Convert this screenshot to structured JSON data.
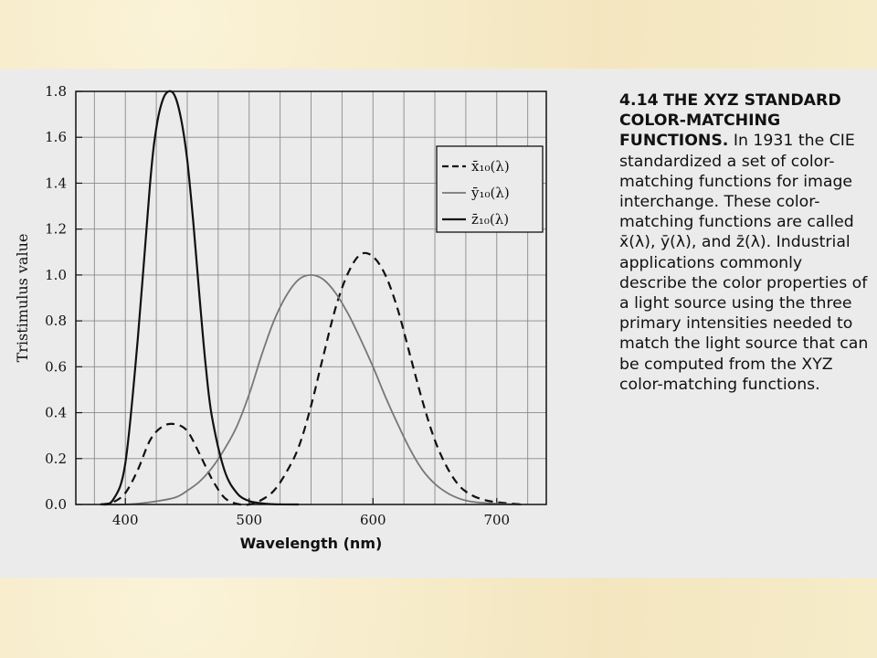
{
  "slide": {
    "caption_number": "4.14",
    "caption_title": "THE XYZ STANDARD COLOR-MATCHING FUNCTIONS.",
    "caption_text_1": "In 1931 the CIE standardized a set of color-matching functions for image interchange. These color-matching functions are called",
    "caption_fn_x": "x̄(λ),",
    "caption_fn_y": "ȳ(λ),",
    "caption_and": "and",
    "caption_fn_z": "z̄(λ).",
    "caption_text_2": "Industrial applications commonly describe the color properties of a light source using the three primary intensities needed to match the light source that can be computed from the XYZ color-matching functions."
  },
  "chart_data": {
    "type": "line",
    "title": "",
    "xlabel": "Wavelength (nm)",
    "ylabel": "Tristimulus value",
    "xlim": [
      360,
      740
    ],
    "ylim": [
      0,
      1.8
    ],
    "x_ticks": [
      400,
      500,
      600,
      700
    ],
    "y_ticks": [
      0.0,
      0.2,
      0.4,
      0.6,
      0.8,
      1.0,
      1.2,
      1.4,
      1.6,
      1.8
    ],
    "y_tick_labels": [
      "0.0",
      "0.2",
      "0.4",
      "0.6",
      "0.8",
      "1.0",
      "1.2",
      "1.4",
      "1.6",
      "1.8"
    ],
    "grid": true,
    "legend_position": "top-right",
    "legend": [
      "x̄₁₀(λ)",
      "ȳ₁₀(λ)",
      "z̄₁₀(λ)"
    ],
    "series": [
      {
        "name": "x̄₁₀(λ)",
        "style": "dashed",
        "x": [
          380,
          390,
          400,
          410,
          420,
          430,
          440,
          450,
          460,
          470,
          480,
          490,
          500,
          510,
          520,
          530,
          540,
          550,
          560,
          570,
          580,
          590,
          600,
          610,
          620,
          630,
          640,
          650,
          660,
          670,
          680,
          690,
          700,
          720
        ],
        "y": [
          0.0,
          0.01,
          0.05,
          0.15,
          0.28,
          0.34,
          0.35,
          0.32,
          0.22,
          0.11,
          0.03,
          0.003,
          0.0,
          0.02,
          0.06,
          0.14,
          0.25,
          0.43,
          0.65,
          0.86,
          1.01,
          1.09,
          1.08,
          1.0,
          0.85,
          0.65,
          0.45,
          0.28,
          0.16,
          0.08,
          0.04,
          0.02,
          0.01,
          0.0
        ]
      },
      {
        "name": "ȳ₁₀(λ)",
        "style": "solid-gray",
        "x": [
          380,
          400,
          420,
          440,
          450,
          460,
          470,
          480,
          490,
          500,
          510,
          520,
          530,
          540,
          550,
          560,
          570,
          580,
          590,
          600,
          610,
          620,
          630,
          640,
          650,
          660,
          670,
          680,
          700,
          720
        ],
        "y": [
          0.0,
          0.0,
          0.01,
          0.03,
          0.06,
          0.1,
          0.16,
          0.24,
          0.34,
          0.48,
          0.65,
          0.8,
          0.91,
          0.98,
          1.0,
          0.98,
          0.92,
          0.83,
          0.72,
          0.6,
          0.47,
          0.35,
          0.24,
          0.15,
          0.09,
          0.05,
          0.025,
          0.012,
          0.003,
          0.0
        ]
      },
      {
        "name": "z̄₁₀(λ)",
        "style": "solid-black",
        "x": [
          380,
          390,
          400,
          410,
          420,
          425,
          430,
          435,
          440,
          445,
          450,
          455,
          460,
          465,
          470,
          480,
          490,
          500,
          510,
          520,
          540
        ],
        "y": [
          0.0,
          0.02,
          0.18,
          0.72,
          1.4,
          1.64,
          1.76,
          1.8,
          1.78,
          1.68,
          1.5,
          1.22,
          0.9,
          0.6,
          0.38,
          0.15,
          0.05,
          0.015,
          0.005,
          0.001,
          0.0
        ]
      }
    ]
  }
}
